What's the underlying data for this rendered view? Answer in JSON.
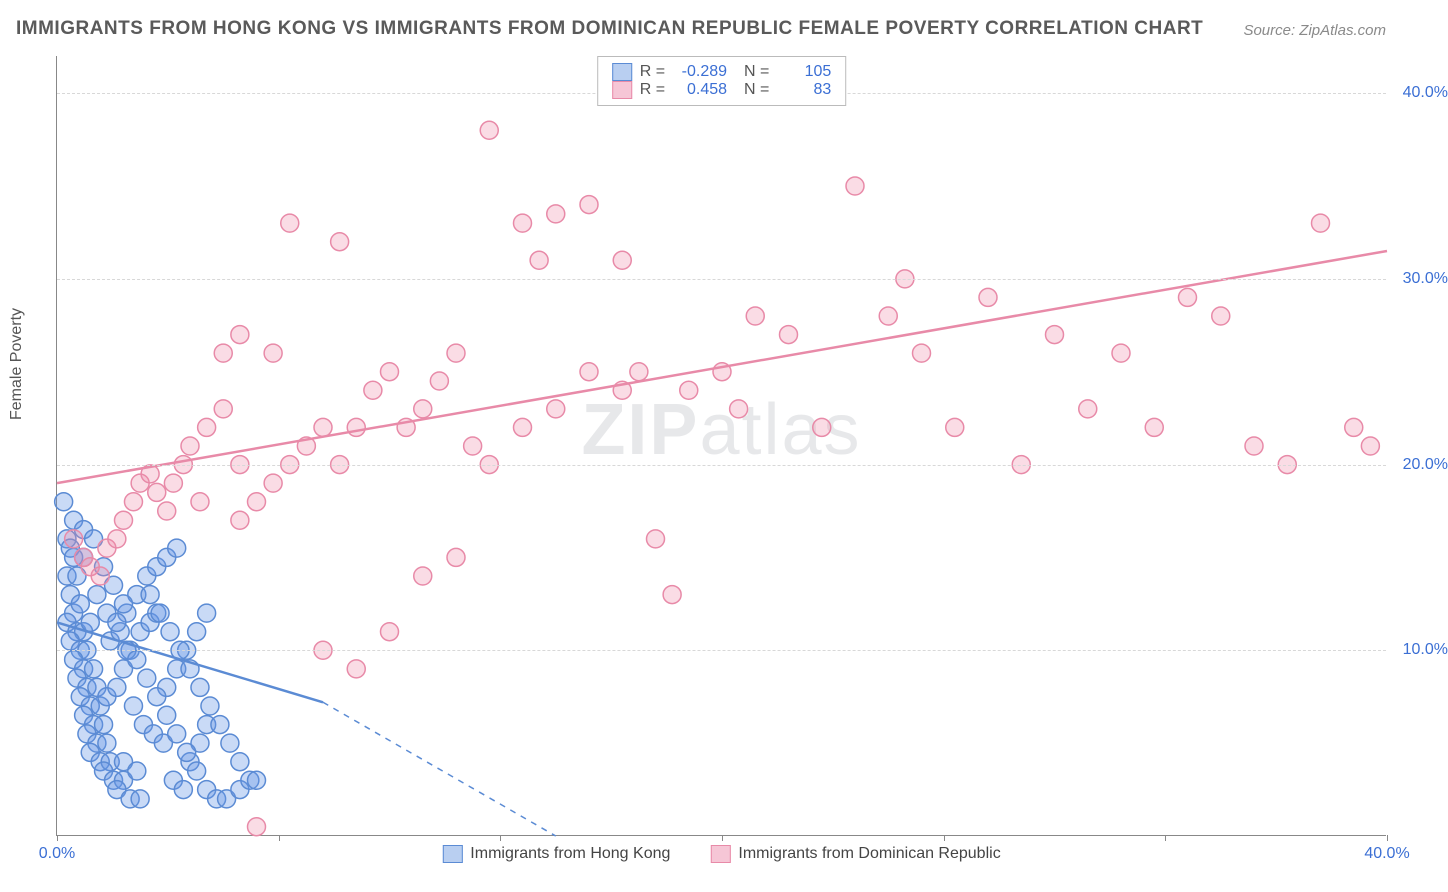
{
  "title": "IMMIGRANTS FROM HONG KONG VS IMMIGRANTS FROM DOMINICAN REPUBLIC FEMALE POVERTY CORRELATION CHART",
  "source": "Source: ZipAtlas.com",
  "ylabel": "Female Poverty",
  "watermark_prefix": "ZIP",
  "watermark_suffix": "atlas",
  "chart": {
    "type": "scatter",
    "xlim": [
      0,
      40
    ],
    "ylim": [
      0,
      42
    ],
    "yticks": [
      10,
      20,
      30,
      40
    ],
    "ytick_labels": [
      "10.0%",
      "20.0%",
      "30.0%",
      "40.0%"
    ],
    "xticks": [
      0,
      6.67,
      13.33,
      20,
      26.67,
      33.33,
      40
    ],
    "xtick_labels_shown": {
      "0": "0.0%",
      "40": "40.0%"
    },
    "grid_color": "#d8d8d8",
    "background_color": "#ffffff",
    "marker_radius": 9,
    "marker_stroke_width": 1.5,
    "line_width": 2.5,
    "series": [
      {
        "name": "Immigrants from Hong Kong",
        "fill": "rgba(100,150,230,0.35)",
        "stroke": "#5b8bd4",
        "swatch_fill": "#b9cff1",
        "swatch_border": "#5b8bd4",
        "R": "-0.289",
        "N": "105",
        "trend": {
          "x1": 0,
          "y1": 11.5,
          "x2": 8,
          "y2": 7.2,
          "solid_until_x": 8,
          "dash_to_x": 15,
          "dash_to_y": 0
        },
        "points": [
          [
            0.2,
            18
          ],
          [
            0.3,
            16
          ],
          [
            0.4,
            15.5
          ],
          [
            0.5,
            15
          ],
          [
            0.3,
            14
          ],
          [
            0.6,
            14
          ],
          [
            0.8,
            15
          ],
          [
            0.4,
            13
          ],
          [
            0.5,
            12
          ],
          [
            0.7,
            12.5
          ],
          [
            0.3,
            11.5
          ],
          [
            0.6,
            11
          ],
          [
            0.8,
            11
          ],
          [
            1,
            11.5
          ],
          [
            0.4,
            10.5
          ],
          [
            0.7,
            10
          ],
          [
            0.9,
            10
          ],
          [
            0.5,
            9.5
          ],
          [
            0.8,
            9
          ],
          [
            1.1,
            9
          ],
          [
            0.6,
            8.5
          ],
          [
            0.9,
            8
          ],
          [
            1.2,
            8
          ],
          [
            0.7,
            7.5
          ],
          [
            1,
            7
          ],
          [
            1.3,
            7
          ],
          [
            0.8,
            6.5
          ],
          [
            1.1,
            6
          ],
          [
            1.4,
            6
          ],
          [
            0.9,
            5.5
          ],
          [
            1.2,
            5
          ],
          [
            1.5,
            5
          ],
          [
            1,
            4.5
          ],
          [
            1.3,
            4
          ],
          [
            1.6,
            4
          ],
          [
            1.4,
            3.5
          ],
          [
            1.7,
            3
          ],
          [
            2,
            3
          ],
          [
            1.8,
            2.5
          ],
          [
            2.2,
            2
          ],
          [
            2.5,
            2
          ],
          [
            1.5,
            7.5
          ],
          [
            1.8,
            8
          ],
          [
            2,
            9
          ],
          [
            2.2,
            10
          ],
          [
            2.5,
            11
          ],
          [
            2.8,
            11.5
          ],
          [
            3,
            12
          ],
          [
            2.3,
            7
          ],
          [
            2.6,
            6
          ],
          [
            2.9,
            5.5
          ],
          [
            3.2,
            5
          ],
          [
            2,
            4
          ],
          [
            2.4,
            3.5
          ],
          [
            3.5,
            3
          ],
          [
            3.8,
            2.5
          ],
          [
            4,
            4
          ],
          [
            4.3,
            5
          ],
          [
            4.5,
            6
          ],
          [
            3.3,
            8
          ],
          [
            3.6,
            9
          ],
          [
            3.9,
            10
          ],
          [
            4.2,
            11
          ],
          [
            4.5,
            12
          ],
          [
            1.6,
            10.5
          ],
          [
            1.9,
            11
          ],
          [
            2.1,
            12
          ],
          [
            2.4,
            13
          ],
          [
            2.7,
            14
          ],
          [
            3,
            14.5
          ],
          [
            3.3,
            15
          ],
          [
            3.6,
            15.5
          ],
          [
            0.5,
            17
          ],
          [
            0.8,
            16.5
          ],
          [
            1.1,
            16
          ],
          [
            1.4,
            14.5
          ],
          [
            1.7,
            13.5
          ],
          [
            2,
            12.5
          ],
          [
            1.2,
            13
          ],
          [
            1.5,
            12
          ],
          [
            1.8,
            11.5
          ],
          [
            2.1,
            10
          ],
          [
            2.4,
            9.5
          ],
          [
            2.7,
            8.5
          ],
          [
            3,
            7.5
          ],
          [
            3.3,
            6.5
          ],
          [
            3.6,
            5.5
          ],
          [
            3.9,
            4.5
          ],
          [
            4.2,
            3.5
          ],
          [
            4.5,
            2.5
          ],
          [
            4.8,
            2
          ],
          [
            5.1,
            2
          ],
          [
            5.5,
            2.5
          ],
          [
            2.8,
            13
          ],
          [
            3.1,
            12
          ],
          [
            3.4,
            11
          ],
          [
            3.7,
            10
          ],
          [
            4,
            9
          ],
          [
            4.3,
            8
          ],
          [
            4.6,
            7
          ],
          [
            4.9,
            6
          ],
          [
            5.2,
            5
          ],
          [
            5.5,
            4
          ],
          [
            5.8,
            3
          ],
          [
            6,
            3
          ]
        ]
      },
      {
        "name": "Immigrants from Dominican Republic",
        "fill": "rgba(240,140,170,0.30)",
        "stroke": "#e88aa8",
        "swatch_fill": "#f6c6d6",
        "swatch_border": "#e88aa8",
        "R": "0.458",
        "N": "83",
        "trend": {
          "x1": 0,
          "y1": 19,
          "x2": 40,
          "y2": 31.5
        },
        "points": [
          [
            0.5,
            16
          ],
          [
            0.8,
            15
          ],
          [
            1,
            14.5
          ],
          [
            1.3,
            14
          ],
          [
            1.5,
            15.5
          ],
          [
            1.8,
            16
          ],
          [
            2,
            17
          ],
          [
            2.3,
            18
          ],
          [
            2.5,
            19
          ],
          [
            2.8,
            19.5
          ],
          [
            3,
            18.5
          ],
          [
            3.3,
            17.5
          ],
          [
            3.5,
            19
          ],
          [
            3.8,
            20
          ],
          [
            4,
            21
          ],
          [
            4.5,
            22
          ],
          [
            5,
            23
          ],
          [
            4.3,
            18
          ],
          [
            5.5,
            17
          ],
          [
            6,
            18
          ],
          [
            6.5,
            19
          ],
          [
            7,
            20
          ],
          [
            7.5,
            21
          ],
          [
            8,
            22
          ],
          [
            5,
            26
          ],
          [
            5.5,
            27
          ],
          [
            8.5,
            20
          ],
          [
            9,
            22
          ],
          [
            9.5,
            24
          ],
          [
            10,
            25
          ],
          [
            10.5,
            22
          ],
          [
            11,
            23
          ],
          [
            11.5,
            24.5
          ],
          [
            12,
            26
          ],
          [
            12.5,
            21
          ],
          [
            8,
            10
          ],
          [
            9,
            9
          ],
          [
            10,
            11
          ],
          [
            11,
            14
          ],
          [
            12,
            15
          ],
          [
            13,
            38
          ],
          [
            14,
            33
          ],
          [
            14.5,
            31
          ],
          [
            15,
            33.5
          ],
          [
            16,
            34
          ],
          [
            17,
            24
          ],
          [
            17.5,
            25
          ],
          [
            18,
            16
          ],
          [
            18.5,
            13
          ],
          [
            19,
            24
          ],
          [
            20,
            25
          ],
          [
            20.5,
            23
          ],
          [
            21,
            28
          ],
          [
            22,
            27
          ],
          [
            23,
            22
          ],
          [
            24,
            35
          ],
          [
            25,
            28
          ],
          [
            25.5,
            30
          ],
          [
            26,
            26
          ],
          [
            27,
            22
          ],
          [
            28,
            29
          ],
          [
            29,
            20
          ],
          [
            30,
            27
          ],
          [
            31,
            23
          ],
          [
            32,
            26
          ],
          [
            33,
            22
          ],
          [
            34,
            29
          ],
          [
            35,
            28
          ],
          [
            36,
            21
          ],
          [
            37,
            20
          ],
          [
            38,
            33
          ],
          [
            39,
            22
          ],
          [
            39.5,
            21
          ],
          [
            6,
            0.5
          ],
          [
            13,
            20
          ],
          [
            14,
            22
          ],
          [
            15,
            23
          ],
          [
            16,
            25
          ],
          [
            17,
            31
          ],
          [
            6.5,
            26
          ],
          [
            7,
            33
          ],
          [
            8.5,
            32
          ],
          [
            5.5,
            20
          ]
        ]
      }
    ]
  }
}
